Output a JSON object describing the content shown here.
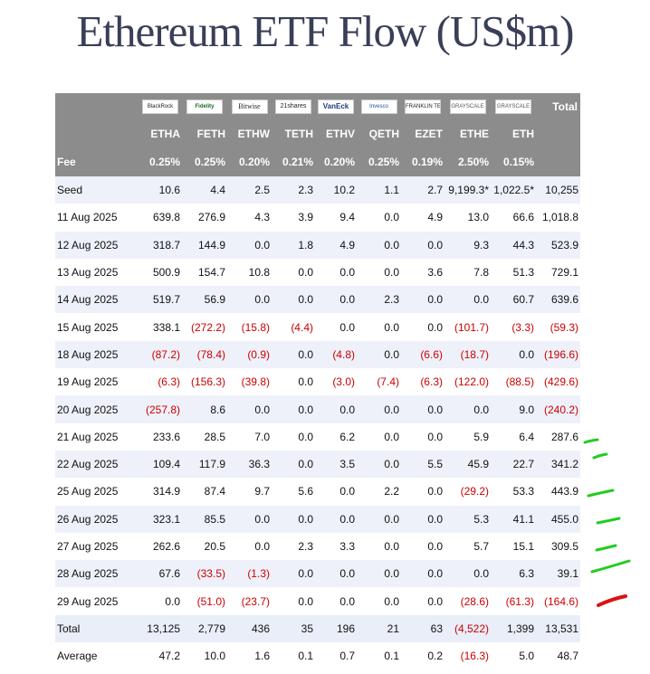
{
  "title": "Ethereum ETF Flow (US$m)",
  "issuers": [
    "BlackRock",
    "Fidelity",
    "Bitwise",
    "21shares",
    "VanEck",
    "Invesco",
    "FRANKLIN TEMPLETON",
    "GRAYSCALE",
    "GRAYSCALE"
  ],
  "header_total": "Total",
  "tickers": [
    "ETHA",
    "FETH",
    "ETHW",
    "TETH",
    "ETHV",
    "QETH",
    "EZET",
    "ETHE",
    "ETH"
  ],
  "fee": {
    "label": "Fee",
    "values": [
      "0.25%",
      "0.25%",
      "0.20%",
      "0.21%",
      "0.20%",
      "0.25%",
      "0.19%",
      "2.50%",
      "0.15%"
    ]
  },
  "rows": [
    {
      "label": "Seed",
      "values": [
        "10.6",
        "4.4",
        "2.5",
        "2.3",
        "10.2",
        "1.1",
        "2.7",
        "9,199.3*",
        "1,022.5*",
        "10,255"
      ]
    },
    {
      "label": "11 Aug 2025",
      "values": [
        "639.8",
        "276.9",
        "4.3",
        "3.9",
        "9.4",
        "0.0",
        "4.9",
        "13.0",
        "66.6",
        "1,018.8"
      ]
    },
    {
      "label": "12 Aug 2025",
      "values": [
        "318.7",
        "144.9",
        "0.0",
        "1.8",
        "4.9",
        "0.0",
        "0.0",
        "9.3",
        "44.3",
        "523.9"
      ]
    },
    {
      "label": "13 Aug 2025",
      "values": [
        "500.9",
        "154.7",
        "10.8",
        "0.0",
        "0.0",
        "0.0",
        "3.6",
        "7.8",
        "51.3",
        "729.1"
      ]
    },
    {
      "label": "14 Aug 2025",
      "values": [
        "519.7",
        "56.9",
        "0.0",
        "0.0",
        "0.0",
        "2.3",
        "0.0",
        "0.0",
        "60.7",
        "639.6"
      ]
    },
    {
      "label": "15 Aug 2025",
      "values": [
        "338.1",
        "(272.2)",
        "(15.8)",
        "(4.4)",
        "0.0",
        "0.0",
        "0.0",
        "(101.7)",
        "(3.3)",
        "(59.3)"
      ]
    },
    {
      "label": "18 Aug 2025",
      "values": [
        "(87.2)",
        "(78.4)",
        "(0.9)",
        "0.0",
        "(4.8)",
        "0.0",
        "(6.6)",
        "(18.7)",
        "0.0",
        "(196.6)"
      ]
    },
    {
      "label": "19 Aug 2025",
      "values": [
        "(6.3)",
        "(156.3)",
        "(39.8)",
        "0.0",
        "(3.0)",
        "(7.4)",
        "(6.3)",
        "(122.0)",
        "(88.5)",
        "(429.6)"
      ]
    },
    {
      "label": "20 Aug 2025",
      "values": [
        "(257.8)",
        "8.6",
        "0.0",
        "0.0",
        "0.0",
        "0.0",
        "0.0",
        "0.0",
        "9.0",
        "(240.2)"
      ]
    },
    {
      "label": "21 Aug 2025",
      "values": [
        "233.6",
        "28.5",
        "7.0",
        "0.0",
        "6.2",
        "0.0",
        "0.0",
        "5.9",
        "6.4",
        "287.6"
      ]
    },
    {
      "label": "22 Aug 2025",
      "values": [
        "109.4",
        "117.9",
        "36.3",
        "0.0",
        "3.5",
        "0.0",
        "5.5",
        "45.9",
        "22.7",
        "341.2"
      ]
    },
    {
      "label": "25 Aug 2025",
      "values": [
        "314.9",
        "87.4",
        "9.7",
        "5.6",
        "0.0",
        "2.2",
        "0.0",
        "(29.2)",
        "53.3",
        "443.9"
      ]
    },
    {
      "label": "26 Aug 2025",
      "values": [
        "323.1",
        "85.5",
        "0.0",
        "0.0",
        "0.0",
        "0.0",
        "0.0",
        "5.3",
        "41.1",
        "455.0"
      ]
    },
    {
      "label": "27 Aug 2025",
      "values": [
        "262.6",
        "20.5",
        "0.0",
        "2.3",
        "3.3",
        "0.0",
        "0.0",
        "5.7",
        "15.1",
        "309.5"
      ]
    },
    {
      "label": "28 Aug 2025",
      "values": [
        "67.6",
        "(33.5)",
        "(1.3)",
        "0.0",
        "0.0",
        "0.0",
        "0.0",
        "0.0",
        "6.3",
        "39.1"
      ]
    },
    {
      "label": "29 Aug 2025",
      "values": [
        "0.0",
        "(51.0)",
        "(23.7)",
        "0.0",
        "0.0",
        "0.0",
        "0.0",
        "(28.6)",
        "(61.3)",
        "(164.6)"
      ]
    },
    {
      "label": "Total",
      "values": [
        "13,125",
        "2,779",
        "436",
        "35",
        "196",
        "21",
        "63",
        "(4,522)",
        "1,399",
        "13,531"
      ]
    },
    {
      "label": "Average",
      "values": [
        "47.2",
        "10.0",
        "1.6",
        "0.1",
        "0.7",
        "0.1",
        "0.2",
        "(16.3)",
        "5.0",
        "48.7"
      ]
    }
  ],
  "annotation_colors": {
    "positive": "#22cc22",
    "negative": "#dd1111"
  }
}
